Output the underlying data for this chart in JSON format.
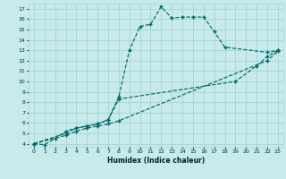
{
  "xlabel": "Humidex (Indice chaleur)",
  "bg_color": "#c8eaea",
  "grid_color": "#a8d8d8",
  "line_color": "#006868",
  "xlim": [
    -0.5,
    23.5
  ],
  "ylim": [
    3.7,
    17.5
  ],
  "xticks": [
    0,
    1,
    2,
    3,
    4,
    5,
    6,
    7,
    8,
    9,
    10,
    11,
    12,
    13,
    14,
    15,
    16,
    17,
    18,
    19,
    20,
    21,
    22,
    23
  ],
  "yticks": [
    4,
    5,
    6,
    7,
    8,
    9,
    10,
    11,
    12,
    13,
    14,
    15,
    16,
    17
  ],
  "line1_x": [
    0,
    1,
    2,
    3,
    4,
    5,
    6,
    7,
    8,
    9,
    10,
    11,
    12,
    13,
    14,
    15,
    16,
    17,
    18,
    22,
    23
  ],
  "line1_y": [
    4.0,
    3.9,
    4.5,
    5.2,
    5.5,
    5.7,
    5.9,
    6.3,
    8.5,
    13.0,
    15.3,
    15.5,
    17.2,
    16.1,
    16.2,
    16.2,
    16.2,
    14.8,
    13.3,
    12.8,
    13.0
  ],
  "line2_x": [
    0,
    3,
    4,
    5,
    6,
    7,
    8,
    19,
    21,
    22,
    23
  ],
  "line2_y": [
    4.0,
    5.0,
    5.5,
    5.7,
    5.9,
    6.3,
    8.3,
    10.0,
    11.5,
    12.4,
    13.0
  ],
  "line3_x": [
    0,
    3,
    4,
    5,
    6,
    7,
    8,
    22,
    23
  ],
  "line3_y": [
    4.0,
    4.8,
    5.2,
    5.5,
    5.7,
    5.9,
    6.2,
    12.0,
    12.9
  ]
}
